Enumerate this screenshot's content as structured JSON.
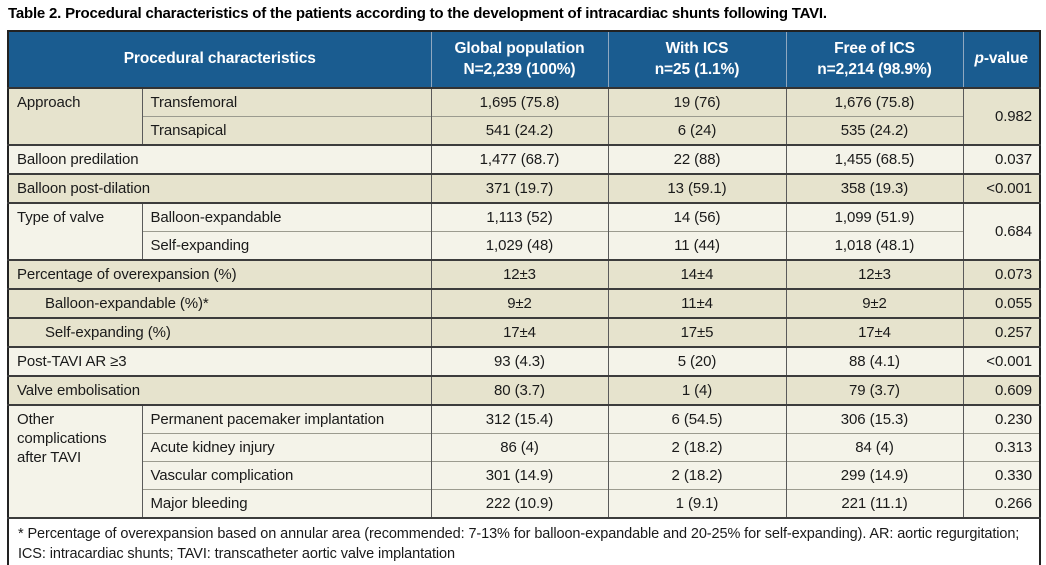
{
  "title": "Table 2. Procedural characteristics of the patients according to the development of intracardiac shunts following TAVI.",
  "colors": {
    "header_bg": "#1a5c90",
    "header_text": "#ffffff",
    "header_separator": "#8fa8c0",
    "row_beige": "#e6e3cd",
    "row_cream": "#f4f3e9",
    "border_dark": "#3c3c3c",
    "border_light": "#9b9b8f"
  },
  "table": {
    "header": {
      "procedural": "Procedural characteristics",
      "global": {
        "line1": "Global population",
        "line2": "N=2,239 (100%)"
      },
      "ics": {
        "line1": "With ICS",
        "line2": "n=25 (1.1%)"
      },
      "free": {
        "line1": "Free of ICS",
        "line2": "n=2,214 (98.9%)"
      },
      "pvalue": {
        "italic": "p",
        "rest": "-value"
      }
    },
    "rows": [
      {
        "group": "Approach",
        "label": "Transfemoral",
        "global": "1,695 (75.8)",
        "ics": "19 (76)",
        "free": "1,676 (75.8)",
        "p": "0.982"
      },
      {
        "label": "Transapical",
        "global": "541 (24.2)",
        "ics": "6 (24)",
        "free": "535 (24.2)"
      },
      {
        "label": "Balloon predilation",
        "global": "1,477 (68.7)",
        "ics": "22 (88)",
        "free": "1,455 (68.5)",
        "p": "0.037"
      },
      {
        "label": "Balloon post-dilation",
        "global": "371 (19.7)",
        "ics": "13 (59.1)",
        "free": "358 (19.3)",
        "p": "<0.001"
      },
      {
        "group": "Type of valve",
        "label": "Balloon-expandable",
        "global": "1,113 (52)",
        "ics": "14 (56)",
        "free": "1,099 (51.9)",
        "p": "0.684"
      },
      {
        "label": "Self-expanding",
        "global": "1,029 (48)",
        "ics": "11 (44)",
        "free": "1,018 (48.1)"
      },
      {
        "label": "Percentage of overexpansion (%)",
        "global": "12±3",
        "ics": "14±4",
        "free": "12±3",
        "p": "0.073"
      },
      {
        "label": "Balloon-expandable (%)*",
        "global": "9±2",
        "ics": "11±4",
        "free": "9±2",
        "p": "0.055"
      },
      {
        "label": "Self-expanding (%)",
        "global": "17±4",
        "ics": "17±5",
        "free": "17±4",
        "p": "0.257"
      },
      {
        "label": "Post-TAVI AR ≥3",
        "global": "93 (4.3)",
        "ics": "5 (20)",
        "free": "88 (4.1)",
        "p": "<0.001"
      },
      {
        "label": "Valve embolisation",
        "global": "80 (3.7)",
        "ics": "1 (4)",
        "free": "79 (3.7)",
        "p": "0.609"
      },
      {
        "group": "Other complications after TAVI",
        "label": "Permanent pacemaker implantation",
        "global": "312 (15.4)",
        "ics": "6 (54.5)",
        "free": "306 (15.3)",
        "p": "0.230"
      },
      {
        "label": "Acute kidney injury",
        "global": "86 (4)",
        "ics": "2 (18.2)",
        "free": "84 (4)",
        "p": "0.313"
      },
      {
        "label": "Vascular complication",
        "global": "301 (14.9)",
        "ics": "2 (18.2)",
        "free": "299 (14.9)",
        "p": "0.330"
      },
      {
        "label": "Major bleeding",
        "global": "222 (10.9)",
        "ics": "1 (9.1)",
        "free": "221 (11.1)",
        "p": "0.266"
      }
    ],
    "footnote": "* Percentage of overexpansion based on annular area (recommended: 7-13% for balloon-expandable and 20-25% for self-expanding). AR: aortic regurgitation; ICS: intracardiac shunts; TAVI: transcatheter aortic valve implantation"
  }
}
